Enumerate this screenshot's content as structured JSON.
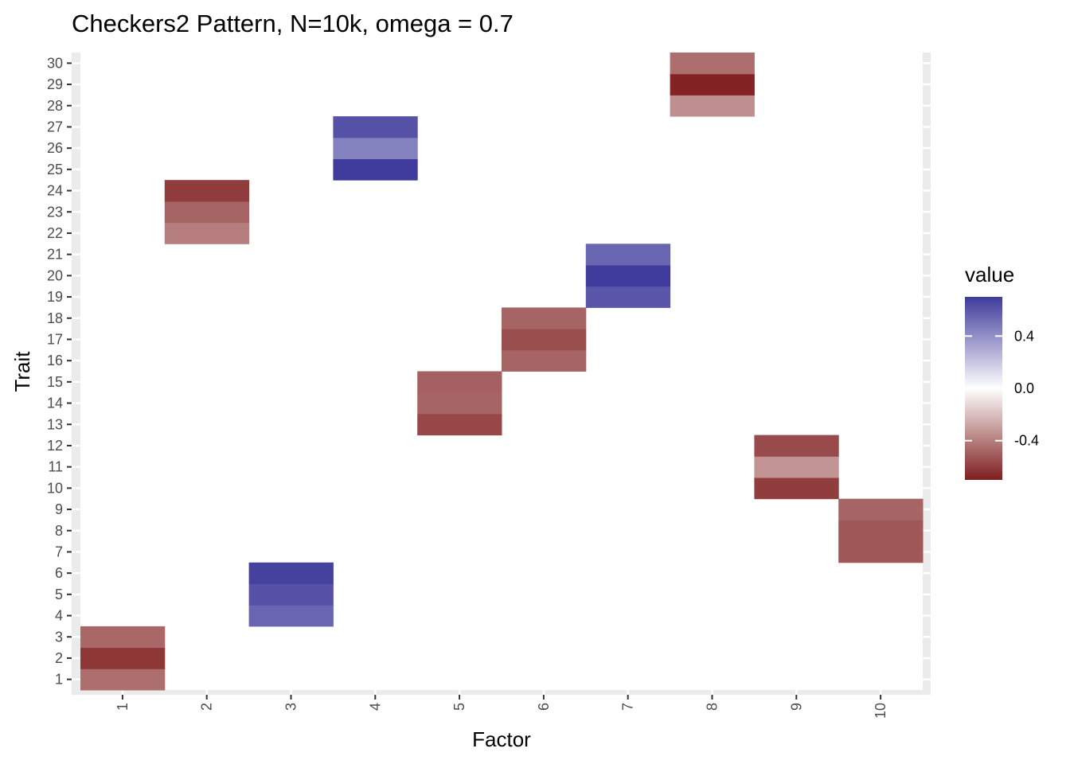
{
  "chart_data": {
    "type": "heatmap",
    "title": "Checkers2 Pattern, N=10k, omega = 0.7",
    "xlabel": "Factor",
    "ylabel": "Trait",
    "x_categories": [
      "1",
      "2",
      "3",
      "4",
      "5",
      "6",
      "7",
      "8",
      "9",
      "10"
    ],
    "y_categories": [
      "1",
      "2",
      "3",
      "4",
      "5",
      "6",
      "7",
      "8",
      "9",
      "10",
      "11",
      "12",
      "13",
      "14",
      "15",
      "16",
      "17",
      "18",
      "19",
      "20",
      "21",
      "22",
      "23",
      "24",
      "25",
      "26",
      "27",
      "28",
      "29",
      "30"
    ],
    "cells": [
      {
        "factor": 1,
        "trait": 1,
        "value": -0.45
      },
      {
        "factor": 1,
        "trait": 2,
        "value": -0.62
      },
      {
        "factor": 1,
        "trait": 3,
        "value": -0.47
      },
      {
        "factor": 3,
        "trait": 4,
        "value": 0.55
      },
      {
        "factor": 3,
        "trait": 5,
        "value": 0.62
      },
      {
        "factor": 3,
        "trait": 6,
        "value": 0.68
      },
      {
        "factor": 10,
        "trait": 7,
        "value": -0.52
      },
      {
        "factor": 10,
        "trait": 8,
        "value": -0.52
      },
      {
        "factor": 10,
        "trait": 9,
        "value": -0.48
      },
      {
        "factor": 9,
        "trait": 10,
        "value": -0.6
      },
      {
        "factor": 9,
        "trait": 11,
        "value": -0.33
      },
      {
        "factor": 9,
        "trait": 12,
        "value": -0.56
      },
      {
        "factor": 5,
        "trait": 13,
        "value": -0.57
      },
      {
        "factor": 5,
        "trait": 14,
        "value": -0.48
      },
      {
        "factor": 5,
        "trait": 15,
        "value": -0.49
      },
      {
        "factor": 6,
        "trait": 16,
        "value": -0.48
      },
      {
        "factor": 6,
        "trait": 17,
        "value": -0.55
      },
      {
        "factor": 6,
        "trait": 18,
        "value": -0.48
      },
      {
        "factor": 7,
        "trait": 19,
        "value": 0.6
      },
      {
        "factor": 7,
        "trait": 20,
        "value": 0.7
      },
      {
        "factor": 7,
        "trait": 21,
        "value": 0.55
      },
      {
        "factor": 2,
        "trait": 22,
        "value": -0.4
      },
      {
        "factor": 2,
        "trait": 23,
        "value": -0.48
      },
      {
        "factor": 2,
        "trait": 24,
        "value": -0.6
      },
      {
        "factor": 4,
        "trait": 25,
        "value": 0.7
      },
      {
        "factor": 4,
        "trait": 26,
        "value": 0.45
      },
      {
        "factor": 4,
        "trait": 27,
        "value": 0.62
      },
      {
        "factor": 8,
        "trait": 28,
        "value": -0.35
      },
      {
        "factor": 8,
        "trait": 29,
        "value": -0.68
      },
      {
        "factor": 8,
        "trait": 30,
        "value": -0.45
      }
    ],
    "legend": {
      "title": "value",
      "position": "right",
      "breaks": [
        0.4,
        0.0,
        -0.4
      ],
      "labels": [
        "0.4",
        "0.0",
        "-0.4"
      ],
      "limits": [
        -0.7,
        0.7
      ],
      "low_color": "#7f1d1d",
      "mid_color": "#ffffff",
      "high_color": "#3f3b9c"
    },
    "grid": true,
    "panel_background": "#ebebeb"
  }
}
